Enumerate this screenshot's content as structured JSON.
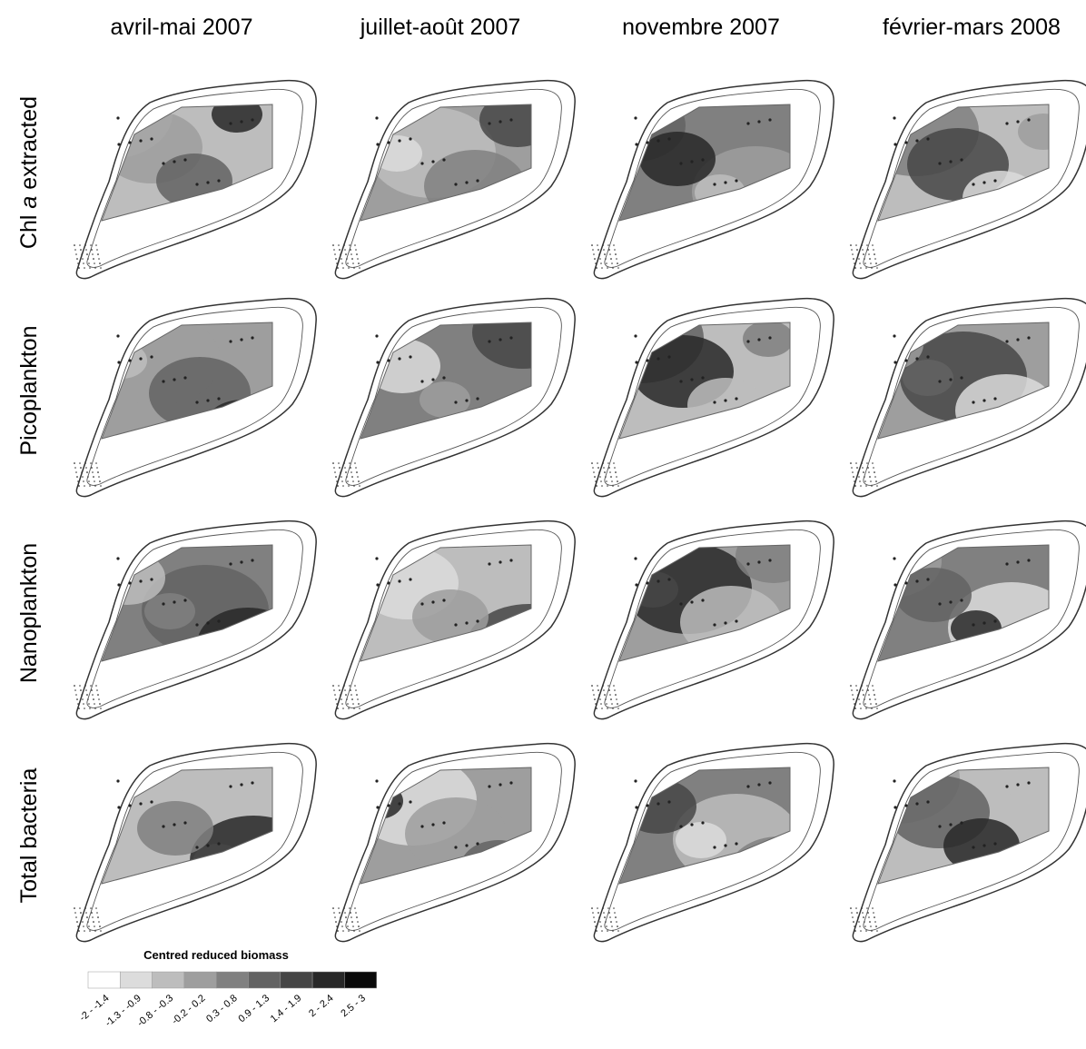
{
  "columns": [
    "avril-mai 2007",
    "juillet-août 2007",
    "novembre 2007",
    "février-mars 2008"
  ],
  "rows": [
    [
      {
        "text": "Chl "
      },
      {
        "text": "a",
        "italic": true
      },
      {
        "text": " extracted"
      }
    ],
    [
      {
        "text": "Picoplankton"
      }
    ],
    [
      {
        "text": "Nanoplankton"
      }
    ],
    [
      {
        "text": "Total bacteria"
      }
    ]
  ],
  "legend": {
    "title": "Centred reduced biomass",
    "classes": [
      {
        "label": "-2 - -1.4",
        "color": "#ffffff"
      },
      {
        "label": "-1.3 - -0.9",
        "color": "#dcdcdc"
      },
      {
        "label": "-0.8 - -0.3",
        "color": "#bdbdbd"
      },
      {
        "label": "-0.2 - 0.2",
        "color": "#9e9e9e"
      },
      {
        "label": "0.3 - 0.8",
        "color": "#808080"
      },
      {
        "label": "0.9 - 1.3",
        "color": "#636363"
      },
      {
        "label": "1.4 - 1.9",
        "color": "#464646"
      },
      {
        "label": "2 - 2.4",
        "color": "#282828"
      },
      {
        "label": "2.5 - 3",
        "color": "#0a0a0a"
      }
    ]
  }
}
